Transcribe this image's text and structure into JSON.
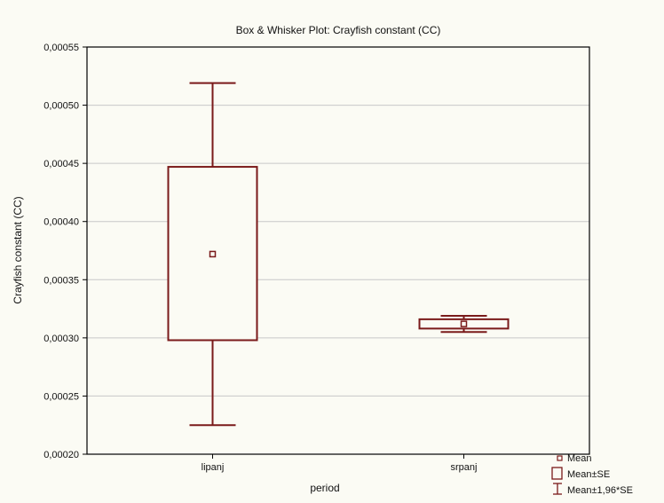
{
  "chart_data": {
    "type": "box",
    "title": "Box & Whisker Plot: Crayfish constant (CC)",
    "xlabel": "period",
    "ylabel": "Crayfish constant (CC)",
    "ylim": [
      0.0002,
      0.00055
    ],
    "y_ticks": [
      "0,00020",
      "0,00025",
      "0,00030",
      "0,00035",
      "0,00040",
      "0,00045",
      "0,00050",
      "0,00055"
    ],
    "y_tick_values": [
      0.0002,
      0.00025,
      0.0003,
      0.00035,
      0.0004,
      0.00045,
      0.0005,
      0.00055
    ],
    "grid": true,
    "categories": [
      "lipanj",
      "srpanj"
    ],
    "boxes": [
      {
        "category": "lipanj",
        "mean": 0.000372,
        "se_low": 0.000298,
        "se_high": 0.000447,
        "ci_low": 0.000225,
        "ci_high": 0.000519
      },
      {
        "category": "srpanj",
        "mean": 0.000312,
        "se_low": 0.000308,
        "se_high": 0.000316,
        "ci_low": 0.000305,
        "ci_high": 0.000319
      }
    ],
    "legend": {
      "position": "bottom-right",
      "entries": [
        "Mean",
        "Mean±SE",
        "Mean±1,96*SE"
      ]
    },
    "color": "#7a1a1a"
  }
}
